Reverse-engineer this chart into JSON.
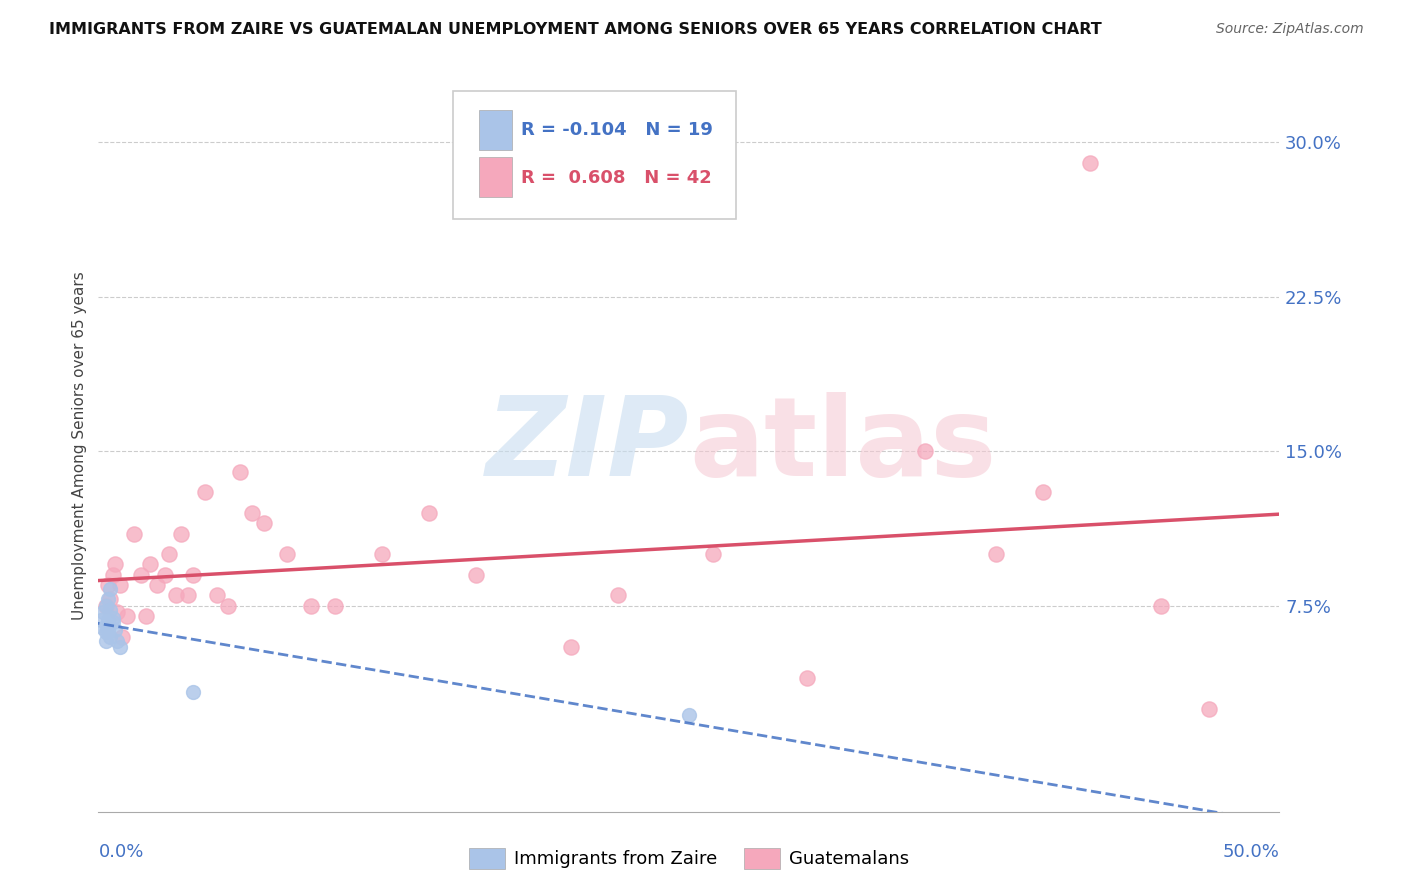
{
  "title": "IMMIGRANTS FROM ZAIRE VS GUATEMALAN UNEMPLOYMENT AMONG SENIORS OVER 65 YEARS CORRELATION CHART",
  "source": "Source: ZipAtlas.com",
  "ylabel": "Unemployment Among Seniors over 65 years",
  "ytick_labels": [
    "7.5%",
    "15.0%",
    "22.5%",
    "30.0%"
  ],
  "ytick_values": [
    0.075,
    0.15,
    0.225,
    0.3
  ],
  "xlim": [
    0.0,
    0.5
  ],
  "ylim": [
    -0.025,
    0.33
  ],
  "legend_r_zaire": "-0.104",
  "legend_n_zaire": "19",
  "legend_r_guatemalan": "0.608",
  "legend_n_guatemalan": "42",
  "zaire_color": "#aac4e8",
  "guatemalan_color": "#f5a8bc",
  "zaire_line_color": "#4472c4",
  "guatemalan_line_color": "#d9506a",
  "zaire_x": [
    0.001,
    0.002,
    0.002,
    0.003,
    0.003,
    0.003,
    0.004,
    0.004,
    0.004,
    0.005,
    0.005,
    0.005,
    0.006,
    0.006,
    0.007,
    0.008,
    0.009,
    0.04,
    0.25
  ],
  "zaire_y": [
    0.068,
    0.072,
    0.064,
    0.075,
    0.062,
    0.058,
    0.068,
    0.078,
    0.063,
    0.073,
    0.083,
    0.06,
    0.067,
    0.069,
    0.063,
    0.058,
    0.055,
    0.033,
    0.022
  ],
  "guatemalan_x": [
    0.003,
    0.004,
    0.005,
    0.006,
    0.007,
    0.008,
    0.009,
    0.01,
    0.012,
    0.015,
    0.018,
    0.02,
    0.022,
    0.025,
    0.028,
    0.03,
    0.033,
    0.035,
    0.038,
    0.04,
    0.045,
    0.05,
    0.055,
    0.06,
    0.065,
    0.07,
    0.08,
    0.09,
    0.1,
    0.12,
    0.14,
    0.16,
    0.2,
    0.22,
    0.26,
    0.3,
    0.35,
    0.38,
    0.4,
    0.42,
    0.45,
    0.47
  ],
  "guatemalan_y": [
    0.075,
    0.085,
    0.078,
    0.09,
    0.095,
    0.072,
    0.085,
    0.06,
    0.07,
    0.11,
    0.09,
    0.07,
    0.095,
    0.085,
    0.09,
    0.1,
    0.08,
    0.11,
    0.08,
    0.09,
    0.13,
    0.08,
    0.075,
    0.14,
    0.12,
    0.115,
    0.1,
    0.075,
    0.075,
    0.1,
    0.12,
    0.09,
    0.055,
    0.08,
    0.1,
    0.04,
    0.15,
    0.1,
    0.13,
    0.29,
    0.075,
    0.025
  ]
}
